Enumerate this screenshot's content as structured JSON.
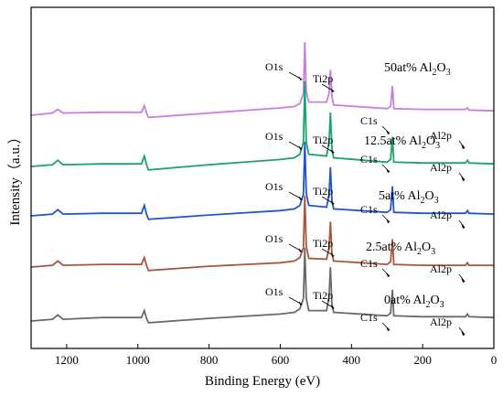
{
  "chart_data": {
    "type": "line",
    "title": "",
    "xlabel": "Binding Energy (eV)",
    "ylabel": "Intensity（a.u.）",
    "xlim": [
      1300,
      0
    ],
    "x_reversed": true,
    "y_units": "arbitrary",
    "grid": false,
    "legend": "none",
    "x_ticks": [
      {
        "value": 1200,
        "label": "1200"
      },
      {
        "value": 1000,
        "label": "1000"
      },
      {
        "value": 800,
        "label": "800"
      },
      {
        "value": 600,
        "label": "600"
      },
      {
        "value": 400,
        "label": "400"
      },
      {
        "value": 200,
        "label": "200"
      },
      {
        "value": 0,
        "label": "0"
      }
    ],
    "peak_labels": [
      "O1s",
      "Ti2p",
      "C1s",
      "Al2p"
    ],
    "peaks_eV": {
      "O1s": 531,
      "Ti2p": 459,
      "C1s": 285,
      "Al2p": 74
    },
    "series": [
      {
        "name_main": "50at% Al",
        "name_sub": "2",
        "name_tail": "O",
        "name_sub2": "3",
        "color": "#c77ee0",
        "x": [
          1300,
          1240,
          1225,
          1210,
          1100,
          990,
          982,
          975,
          970,
          800,
          600,
          560,
          545,
          535,
          531,
          527,
          520,
          470,
          463,
          459,
          455,
          450,
          300,
          290,
          285,
          281,
          200,
          80,
          74,
          70,
          0
        ],
        "y": [
          0.0,
          0.03,
          0.08,
          0.03,
          0.04,
          0.04,
          0.13,
          0.02,
          -0.03,
          0.03,
          0.1,
          0.12,
          0.16,
          0.3,
          1.0,
          0.32,
          0.18,
          0.18,
          0.3,
          0.62,
          0.26,
          0.14,
          0.09,
          0.12,
          0.4,
          0.09,
          0.08,
          0.08,
          0.1,
          0.07,
          0.06
        ]
      },
      {
        "name_main": "12.5at% Al",
        "name_sub": "2",
        "name_tail": "O",
        "name_sub2": "3",
        "color": "#1aa36a",
        "x": [
          1300,
          1240,
          1225,
          1210,
          1100,
          990,
          982,
          975,
          970,
          800,
          600,
          560,
          545,
          535,
          531,
          527,
          520,
          470,
          463,
          459,
          455,
          450,
          300,
          290,
          285,
          281,
          200,
          80,
          74,
          70,
          0
        ],
        "y": [
          0.0,
          0.02,
          0.07,
          0.02,
          0.03,
          0.03,
          0.12,
          0.01,
          -0.04,
          0.02,
          0.08,
          0.1,
          0.14,
          0.28,
          0.98,
          0.28,
          0.14,
          0.12,
          0.28,
          0.62,
          0.22,
          0.1,
          0.05,
          0.08,
          0.34,
          0.05,
          0.04,
          0.04,
          0.07,
          0.04,
          0.03
        ]
      },
      {
        "name_main": "5at% Al",
        "name_sub": "2",
        "name_tail": "O",
        "name_sub2": "3",
        "color": "#2255cc",
        "x": [
          1300,
          1240,
          1225,
          1210,
          1100,
          990,
          982,
          975,
          970,
          800,
          600,
          560,
          545,
          535,
          531,
          527,
          520,
          470,
          463,
          459,
          455,
          450,
          300,
          290,
          285,
          281,
          200,
          80,
          74,
          70,
          0
        ],
        "y": [
          0.0,
          0.02,
          0.07,
          0.02,
          0.03,
          0.03,
          0.12,
          0.01,
          -0.04,
          0.01,
          0.06,
          0.08,
          0.12,
          0.25,
          0.85,
          0.26,
          0.12,
          0.1,
          0.24,
          0.56,
          0.18,
          0.08,
          0.04,
          0.07,
          0.34,
          0.04,
          0.03,
          0.03,
          0.06,
          0.03,
          0.02
        ]
      },
      {
        "name_main": "2.5at% Al",
        "name_sub": "2",
        "name_tail": "O",
        "name_sub2": "3",
        "color": "#a85540",
        "x": [
          1300,
          1240,
          1225,
          1210,
          1100,
          990,
          982,
          975,
          970,
          800,
          600,
          560,
          545,
          535,
          531,
          527,
          520,
          470,
          463,
          459,
          455,
          450,
          300,
          290,
          285,
          281,
          200,
          80,
          74,
          70,
          0
        ],
        "y": [
          0.0,
          0.02,
          0.07,
          0.02,
          0.03,
          0.03,
          0.11,
          0.01,
          -0.04,
          0.01,
          0.05,
          0.07,
          0.11,
          0.22,
          0.82,
          0.24,
          0.1,
          0.09,
          0.22,
          0.52,
          0.16,
          0.07,
          0.03,
          0.06,
          0.32,
          0.03,
          0.02,
          0.02,
          0.05,
          0.02,
          0.02
        ]
      },
      {
        "name_main": "0at% Al",
        "name_sub": "2",
        "name_tail": "O",
        "name_sub2": "3",
        "color": "#6a6a6a",
        "x": [
          1300,
          1240,
          1225,
          1210,
          1100,
          990,
          982,
          975,
          970,
          800,
          600,
          560,
          545,
          535,
          531,
          527,
          520,
          470,
          463,
          459,
          455,
          450,
          300,
          290,
          285,
          281,
          200,
          80,
          74,
          70,
          0
        ],
        "y": [
          0.0,
          0.02,
          0.07,
          0.02,
          0.04,
          0.04,
          0.12,
          0.02,
          -0.02,
          0.03,
          0.08,
          0.1,
          0.14,
          0.26,
          0.84,
          0.26,
          0.12,
          0.12,
          0.28,
          0.62,
          0.2,
          0.1,
          0.06,
          0.09,
          0.36,
          0.06,
          0.05,
          0.05,
          0.08,
          0.05,
          0.04
        ]
      }
    ]
  }
}
